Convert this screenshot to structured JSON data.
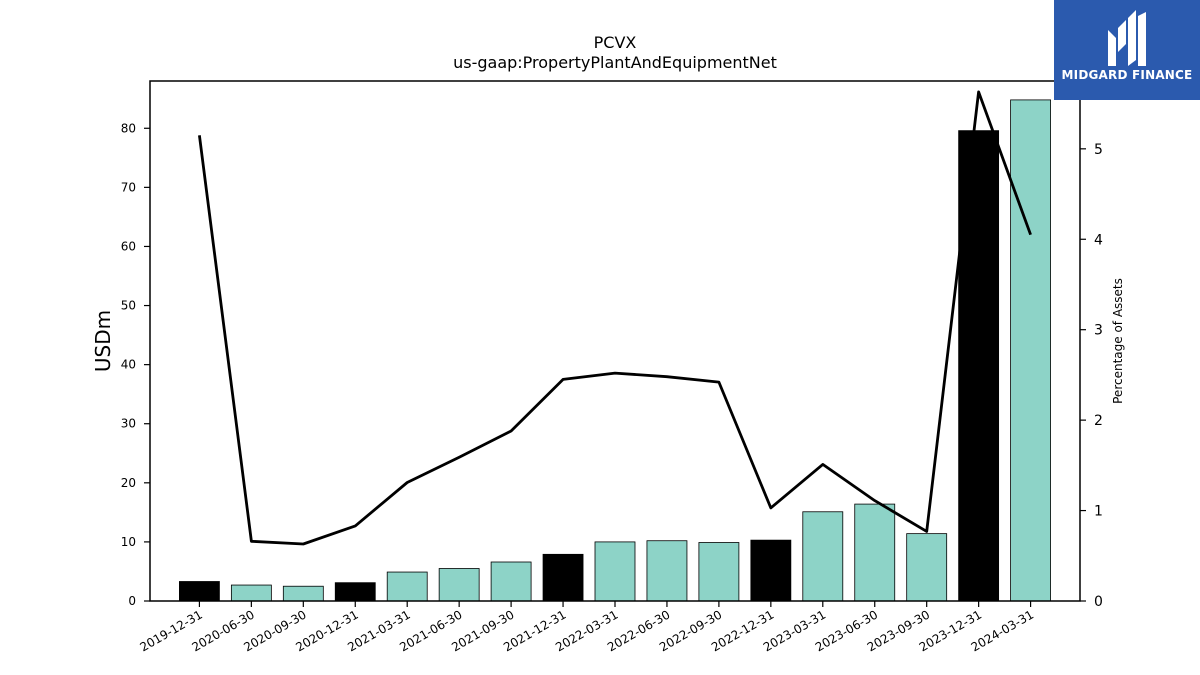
{
  "chart_data": {
    "type": "bar",
    "title": "PCVX",
    "subtitle": "us-gaap:PropertyPlantAndEquipmentNet",
    "ylabel": "USDm",
    "y2label": "Percentage of Assets",
    "ylim": [
      0,
      88
    ],
    "y2lim": [
      0,
      5.75
    ],
    "yticks": [
      0,
      10,
      20,
      30,
      40,
      50,
      60,
      70,
      80
    ],
    "y2ticks": [
      0,
      1,
      2,
      3,
      4,
      5
    ],
    "categories": [
      "2019-12-31",
      "2020-06-30",
      "2020-09-30",
      "2020-12-31",
      "2021-03-31",
      "2021-06-30",
      "2021-09-30",
      "2021-12-31",
      "2022-03-31",
      "2022-06-30",
      "2022-09-30",
      "2022-12-31",
      "2023-03-31",
      "2023-06-30",
      "2023-09-30",
      "2023-12-31",
      "2024-03-31"
    ],
    "series": [
      {
        "type": "bar",
        "axis": "left",
        "values": [
          3.3,
          2.7,
          2.5,
          3.1,
          4.9,
          5.5,
          6.6,
          7.9,
          10.0,
          10.2,
          9.9,
          10.3,
          15.1,
          16.4,
          11.4,
          79.6,
          84.8
        ],
        "colors": [
          "#000000",
          "#8dd3c7",
          "#8dd3c7",
          "#000000",
          "#8dd3c7",
          "#8dd3c7",
          "#8dd3c7",
          "#000000",
          "#8dd3c7",
          "#8dd3c7",
          "#8dd3c7",
          "#000000",
          "#8dd3c7",
          "#8dd3c7",
          "#8dd3c7",
          "#000000",
          "#8dd3c7"
        ]
      },
      {
        "type": "line",
        "axis": "right",
        "color": "#000000",
        "values": [
          5.15,
          0.66,
          0.63,
          0.83,
          1.31,
          1.59,
          1.88,
          2.45,
          2.52,
          2.48,
          2.42,
          1.03,
          1.51,
          1.11,
          0.77,
          5.63,
          4.05
        ]
      }
    ],
    "grid": false,
    "legend": "none"
  },
  "logo": {
    "text": "MIDGARD FINANCE",
    "bg_color": "#2b5aae"
  }
}
